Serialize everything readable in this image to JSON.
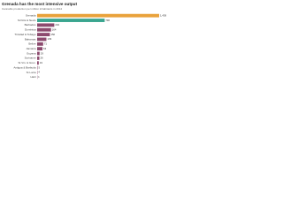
{
  "chart_data": {
    "type": "bar",
    "orientation": "horizontal",
    "title": "Grenada has the most intensive output",
    "subtitle": "Cannabis production per million inhabitants in 2014",
    "categories": [
      "Grenada",
      "St Kitts & Nevis",
      "Barbados",
      "Dominica",
      "Trinidad & Tobago",
      "Bahamas",
      "Belize",
      "Jamaica",
      "Guyana",
      "Suriname",
      "St Vin. & Gren.",
      "Antigua & Barbuda",
      "St Lucia",
      "Haiti"
    ],
    "values": [
      1438,
      796,
      202,
      164,
      150,
      109,
      71,
      63,
      29,
      26,
      19,
      5,
      4,
      1
    ],
    "value_labels": [
      "1,438",
      "796",
      "202",
      "164",
      "150",
      "109",
      "71",
      "63",
      "29",
      "26",
      "19",
      "5",
      "4",
      "1"
    ],
    "colors": [
      "#e9a23b",
      "#3aa58f",
      "#8c4a6e",
      "#8c4a6e",
      "#8c4a6e",
      "#8c4a6e",
      "#8c4a6e",
      "#8c4a6e",
      "#8c4a6e",
      "#8c4a6e",
      "#8c4a6e",
      "#8c4a6e",
      "#8c4a6e",
      "#8c4a6e"
    ]
  }
}
